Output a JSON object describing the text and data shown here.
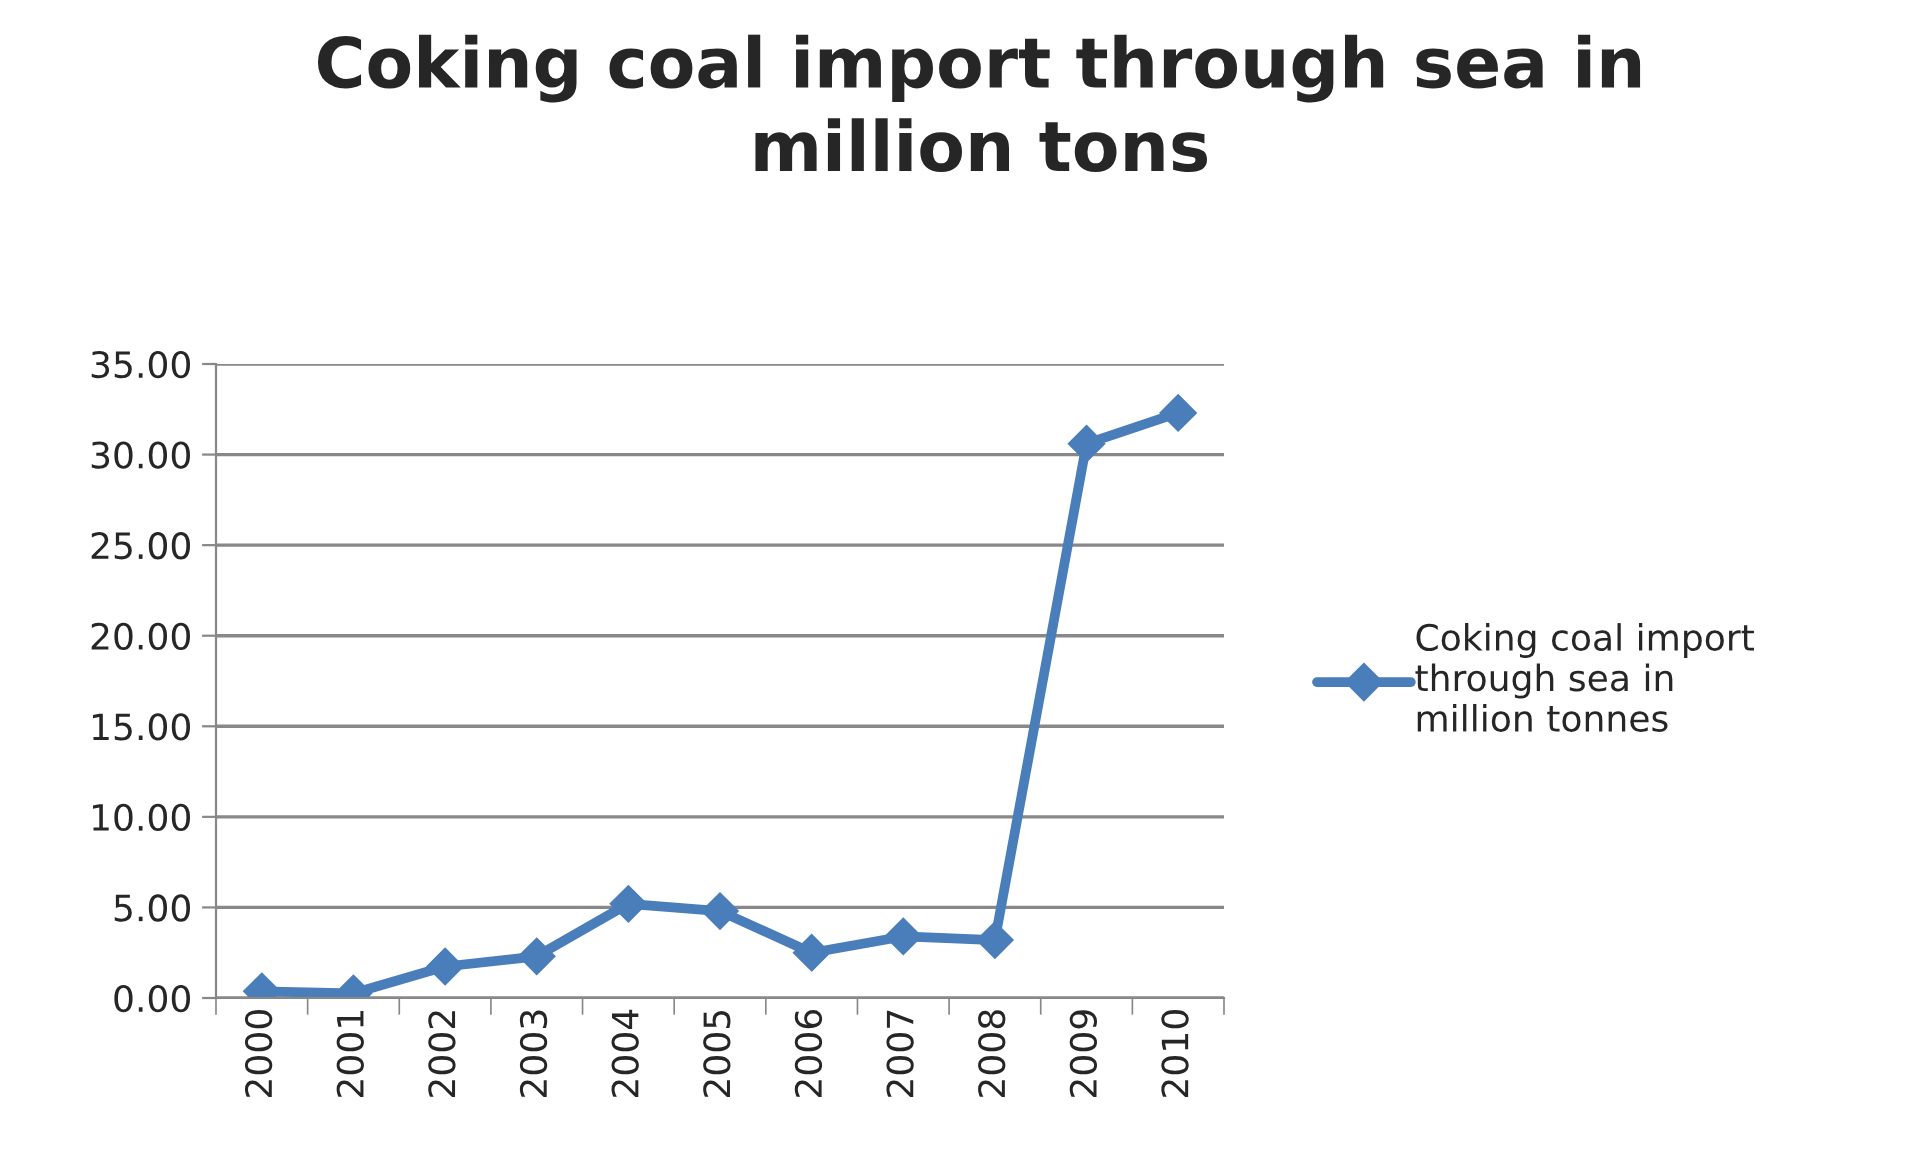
{
  "chart_data": {
    "type": "line",
    "title": "Coking coal import through sea in\nmillion tons",
    "categories": [
      "2000",
      "2001",
      "2002",
      "2003",
      "2004",
      "2005",
      "2006",
      "2007",
      "2008",
      "2009",
      "2010"
    ],
    "series": [
      {
        "name": "Coking coal import through sea in million tonnes",
        "color": "#4a7ebb",
        "values": [
          0.37,
          0.26,
          1.74,
          2.3,
          5.2,
          4.8,
          2.5,
          3.4,
          3.2,
          30.6,
          32.3
        ]
      }
    ],
    "ylim": [
      0,
      35
    ],
    "yticks": [
      {
        "value": 0,
        "label": "0.00"
      },
      {
        "value": 5,
        "label": "5.00"
      },
      {
        "value": 10,
        "label": "10.00"
      },
      {
        "value": 15,
        "label": "15.00"
      },
      {
        "value": 20,
        "label": "20.00"
      },
      {
        "value": 25,
        "label": "25.00"
      },
      {
        "value": 30,
        "label": "30.00"
      },
      {
        "value": 35,
        "label": "35.00"
      }
    ],
    "grid": "y",
    "legend": "right",
    "marker": "diamond",
    "line_style": "solid"
  }
}
